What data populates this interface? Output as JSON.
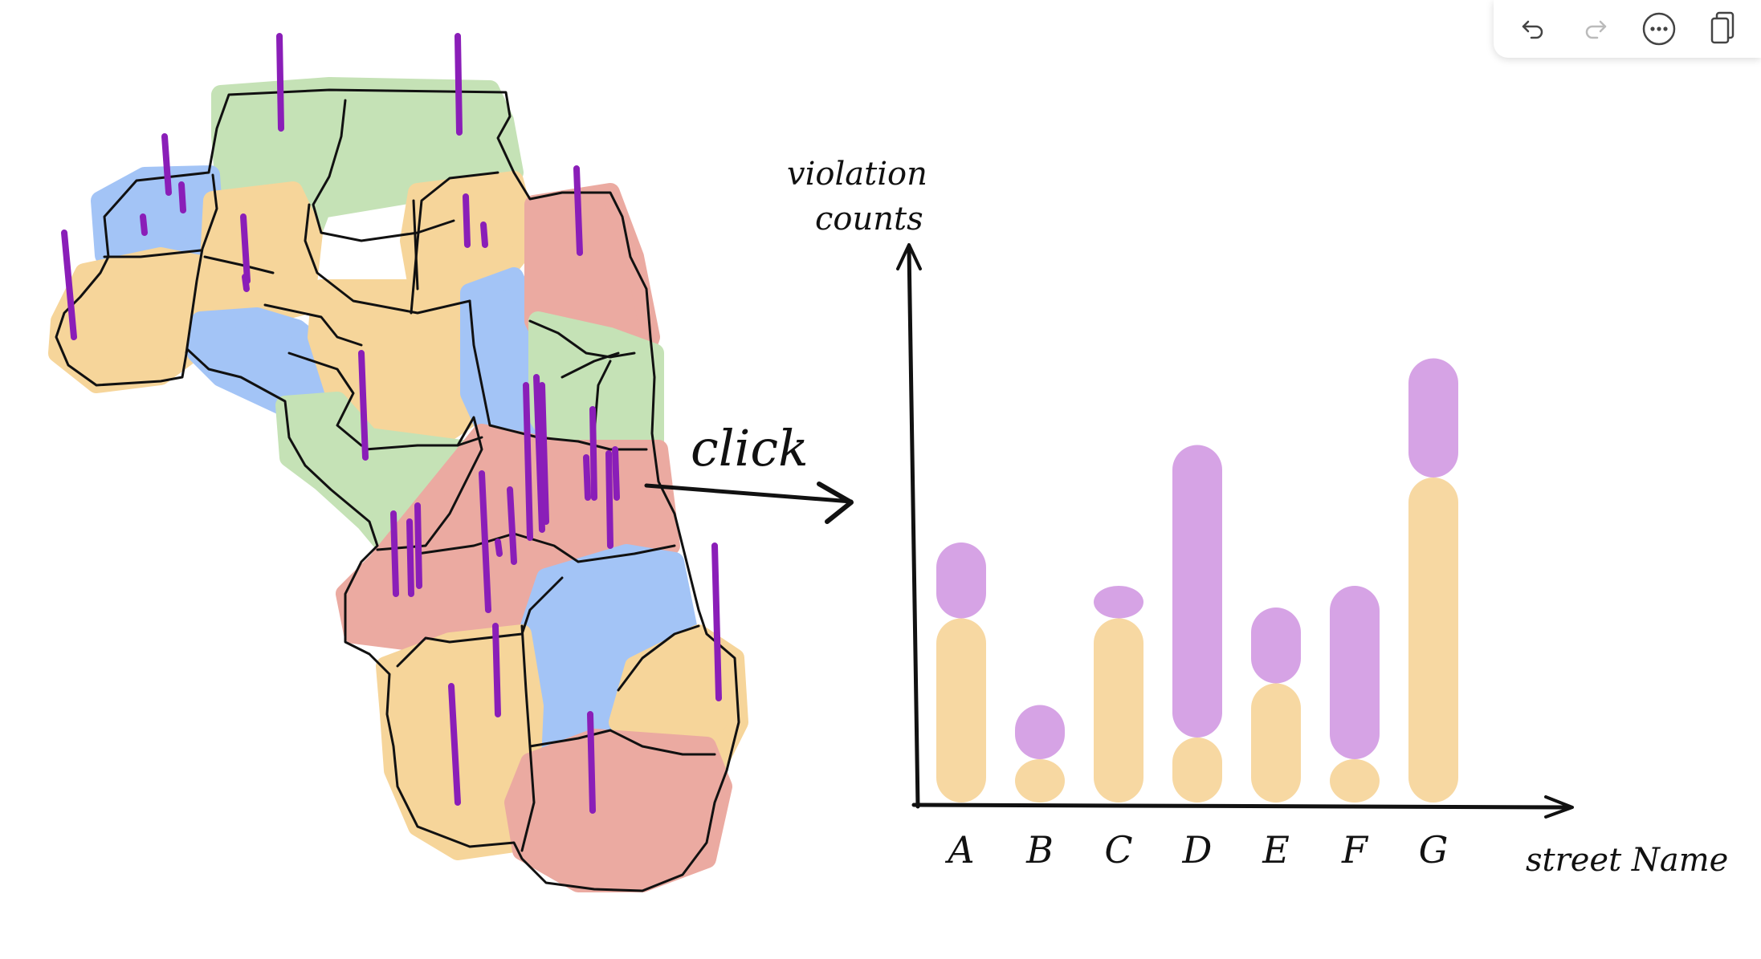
{
  "toolbar": {
    "undo_icon": "undo-arrow-icon",
    "redo_icon": "redo-arrow-icon",
    "more_icon": "more-options-icon",
    "copy_icon": "copy-icon"
  },
  "diagram": {
    "arrow_label": "click",
    "colors": {
      "orange": "#F6D59A",
      "purple": "#D39BE3",
      "green": "#C5E2B6",
      "blue": "#A3C4F6",
      "red": "#EBAAA1",
      "spike": "#8A1EB8",
      "ink": "#111111"
    }
  },
  "chart_data": {
    "type": "bar",
    "ylabel": "violation counts",
    "xlabel": "street Name",
    "categories": [
      "A",
      "B",
      "C",
      "D",
      "E",
      "F",
      "G"
    ],
    "series": [
      {
        "values": [
          170,
          40,
          170,
          60,
          110,
          40,
          300
        ]
      },
      {
        "values": [
          70,
          50,
          30,
          270,
          70,
          160,
          110
        ]
      }
    ],
    "stacked": true,
    "grid": false,
    "legend": "none"
  }
}
